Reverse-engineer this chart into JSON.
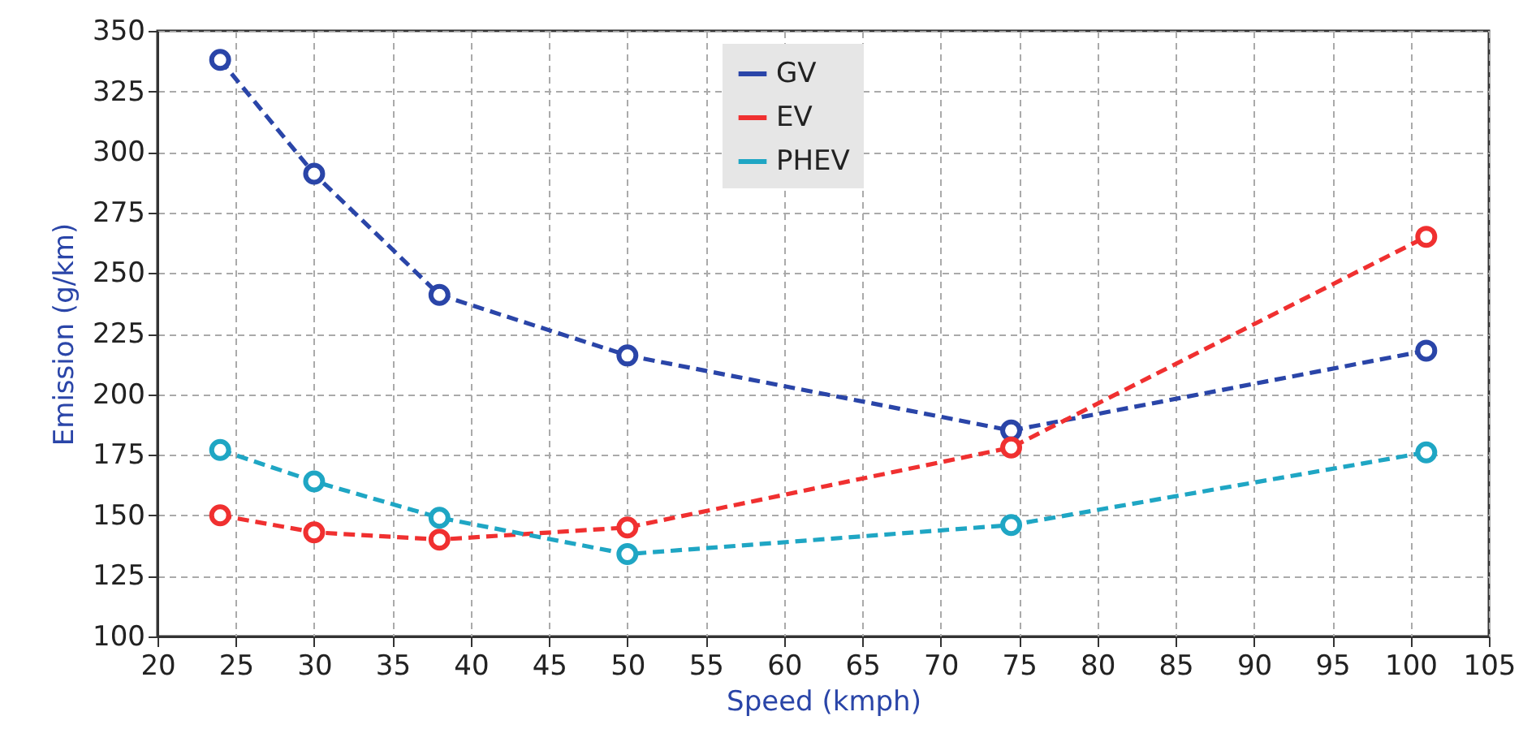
{
  "chart_data": {
    "type": "line",
    "xlabel": "Speed (kmph)",
    "ylabel": "Emission (g/km)",
    "x": [
      24,
      30,
      38,
      50,
      74.5,
      101
    ],
    "series": [
      {
        "name": "GV",
        "color": "#2a45a8",
        "values": [
          338,
          291,
          241,
          216,
          185,
          218
        ]
      },
      {
        "name": "EV",
        "color": "#f03030",
        "values": [
          150,
          143,
          140,
          145,
          178,
          265
        ]
      },
      {
        "name": "PHEV",
        "color": "#1fa6c4",
        "values": [
          177,
          164,
          149,
          134,
          146,
          176
        ]
      }
    ],
    "xlim": [
      20,
      105
    ],
    "xticks": [
      20,
      25,
      30,
      35,
      40,
      45,
      50,
      55,
      60,
      65,
      70,
      75,
      80,
      85,
      90,
      95,
      100,
      105
    ],
    "ylim": [
      100,
      350
    ],
    "yticks": [
      100,
      125,
      150,
      175,
      200,
      225,
      250,
      275,
      300,
      325,
      350
    ],
    "grid": true,
    "legend": "top",
    "marker": "circle",
    "line_style": "dashed"
  }
}
